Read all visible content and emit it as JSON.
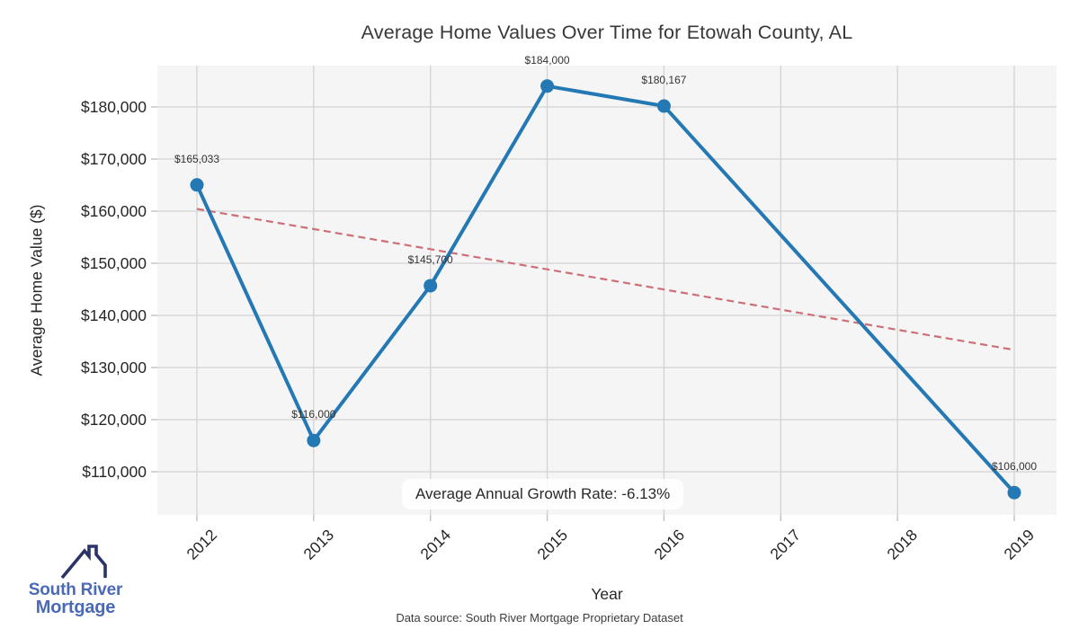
{
  "chart_data": {
    "type": "line",
    "title": "Average Home Values Over Time for Etowah County, AL",
    "xlabel": "Year",
    "ylabel": "Average Home Value ($)",
    "x": [
      2012,
      2013,
      2014,
      2015,
      2016,
      2019
    ],
    "values": [
      165033,
      116000,
      145700,
      184000,
      180167,
      106000
    ],
    "point_labels": [
      "$165,033",
      "$116,000",
      "$145,700",
      "$184,000",
      "$180,167",
      "$106,000"
    ],
    "xticks": [
      2012,
      2013,
      2014,
      2015,
      2016,
      2017,
      2018,
      2019
    ],
    "xtick_labels": [
      "2012",
      "2013",
      "2014",
      "2015",
      "2016",
      "2017",
      "2018",
      "2019"
    ],
    "yticks": [
      110000,
      120000,
      130000,
      140000,
      150000,
      160000,
      170000,
      180000
    ],
    "ytick_labels": [
      "$110,000",
      "$120,000",
      "$130,000",
      "$140,000",
      "$150,000",
      "$160,000",
      "$170,000",
      "$180,000"
    ],
    "ylim": [
      101700,
      187950
    ],
    "grid": true,
    "legend": "none",
    "line_color": "#2478b4",
    "marker_color": "#2478b4",
    "background": "#f5f5f6",
    "grid_color": "#d3d3d3",
    "trendline": {
      "x": [
        2012,
        2019
      ],
      "values": [
        160430,
        133380
      ],
      "style": "dashed",
      "color": "#cd6f76"
    },
    "annotation": "Average Annual Growth Rate: -6.13%"
  },
  "footer": {
    "source": "Data source: South River Mortgage Proprietary Dataset"
  },
  "logo": {
    "name_line1": "South River",
    "name_line2": "Mortgage",
    "text_color": "#4a69b7",
    "roof_color": "#2b3468"
  }
}
